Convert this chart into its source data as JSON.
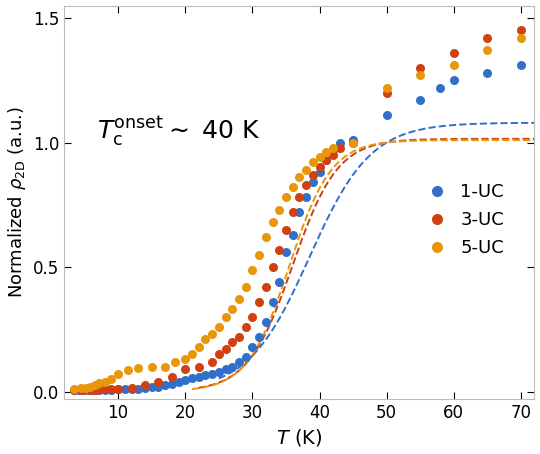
{
  "title": "",
  "xlabel": "$T$ (K)",
  "ylabel": "Normalized $\\rho_{\\rm 2D}$ (a.u.)",
  "xlim": [
    2,
    72
  ],
  "ylim": [
    -0.03,
    1.55
  ],
  "xticks": [
    10,
    20,
    30,
    40,
    50,
    60,
    70
  ],
  "yticks": [
    0.0,
    0.5,
    1.0,
    1.5
  ],
  "series": [
    {
      "label": "1-UC",
      "color": "#3070c8",
      "data_x": [
        3.5,
        4.2,
        5.0,
        5.8,
        6.5,
        7.2,
        8.0,
        9.0,
        10.0,
        11.0,
        12.0,
        13.0,
        14.0,
        15.0,
        16.0,
        17.0,
        18.0,
        19.0,
        20.0,
        21.0,
        22.0,
        23.0,
        24.0,
        25.0,
        26.0,
        27.0,
        28.0,
        29.0,
        30.0,
        31.0,
        32.0,
        33.0,
        34.0,
        35.0,
        36.0,
        37.0,
        38.0,
        39.0,
        40.0,
        41.0,
        42.0,
        43.0,
        45.0,
        50.0,
        55.0,
        58.0,
        60.0,
        65.0,
        70.0
      ],
      "data_y": [
        0.005,
        0.005,
        0.005,
        0.005,
        0.005,
        0.005,
        0.005,
        0.008,
        0.01,
        0.01,
        0.01,
        0.012,
        0.015,
        0.018,
        0.02,
        0.025,
        0.03,
        0.038,
        0.046,
        0.053,
        0.06,
        0.065,
        0.07,
        0.08,
        0.09,
        0.1,
        0.12,
        0.14,
        0.18,
        0.22,
        0.28,
        0.36,
        0.44,
        0.56,
        0.63,
        0.72,
        0.78,
        0.84,
        0.88,
        0.93,
        0.97,
        1.0,
        1.01,
        1.11,
        1.17,
        1.22,
        1.25,
        1.28,
        1.31
      ],
      "fit_T0": 38.5,
      "fit_k": 0.22,
      "fit_x_start": 25.0
    },
    {
      "label": "3-UC",
      "color": "#d04010",
      "data_x": [
        3.5,
        4.5,
        5.5,
        6.2,
        7.0,
        8.0,
        9.0,
        10.0,
        12.0,
        14.0,
        16.0,
        18.0,
        20.0,
        22.0,
        24.0,
        25.0,
        26.0,
        27.0,
        28.0,
        29.0,
        30.0,
        31.0,
        32.0,
        33.0,
        34.0,
        35.0,
        36.0,
        37.0,
        38.0,
        39.0,
        40.0,
        41.0,
        42.0,
        43.0,
        45.0,
        50.0,
        55.0,
        60.0,
        65.0,
        70.0
      ],
      "data_y": [
        0.005,
        0.005,
        0.005,
        0.005,
        0.008,
        0.01,
        0.01,
        0.01,
        0.015,
        0.025,
        0.04,
        0.06,
        0.09,
        0.1,
        0.12,
        0.15,
        0.17,
        0.2,
        0.22,
        0.26,
        0.3,
        0.36,
        0.42,
        0.5,
        0.57,
        0.65,
        0.72,
        0.78,
        0.83,
        0.87,
        0.9,
        0.93,
        0.95,
        0.98,
        1.0,
        1.2,
        1.3,
        1.36,
        1.42,
        1.45
      ],
      "fit_T0": 36.0,
      "fit_k": 0.3,
      "fit_x_start": 22.0
    },
    {
      "label": "5-UC",
      "color": "#e8960a",
      "data_x": [
        3.5,
        4.5,
        5.2,
        5.8,
        6.5,
        7.2,
        8.0,
        9.0,
        10.0,
        11.5,
        13.0,
        15.0,
        17.0,
        18.5,
        20.0,
        21.0,
        22.0,
        23.0,
        24.0,
        25.0,
        26.0,
        27.0,
        28.0,
        29.0,
        30.0,
        31.0,
        32.0,
        33.0,
        34.0,
        35.0,
        36.0,
        37.0,
        38.0,
        39.0,
        40.0,
        41.0,
        42.0,
        45.0,
        50.0,
        55.0,
        60.0,
        65.0,
        70.0
      ],
      "data_y": [
        0.01,
        0.015,
        0.015,
        0.02,
        0.025,
        0.035,
        0.04,
        0.05,
        0.07,
        0.085,
        0.095,
        0.1,
        0.1,
        0.12,
        0.13,
        0.15,
        0.18,
        0.21,
        0.23,
        0.26,
        0.3,
        0.33,
        0.37,
        0.42,
        0.49,
        0.55,
        0.62,
        0.68,
        0.73,
        0.78,
        0.82,
        0.86,
        0.89,
        0.92,
        0.94,
        0.96,
        0.98,
        1.0,
        1.22,
        1.27,
        1.31,
        1.37,
        1.42
      ],
      "fit_T0": 35.5,
      "fit_k": 0.32,
      "fit_x_start": 21.0
    }
  ],
  "bg_color": "#ffffff",
  "marker_size": 6.5,
  "line_width": 1.4,
  "dpi": 100
}
